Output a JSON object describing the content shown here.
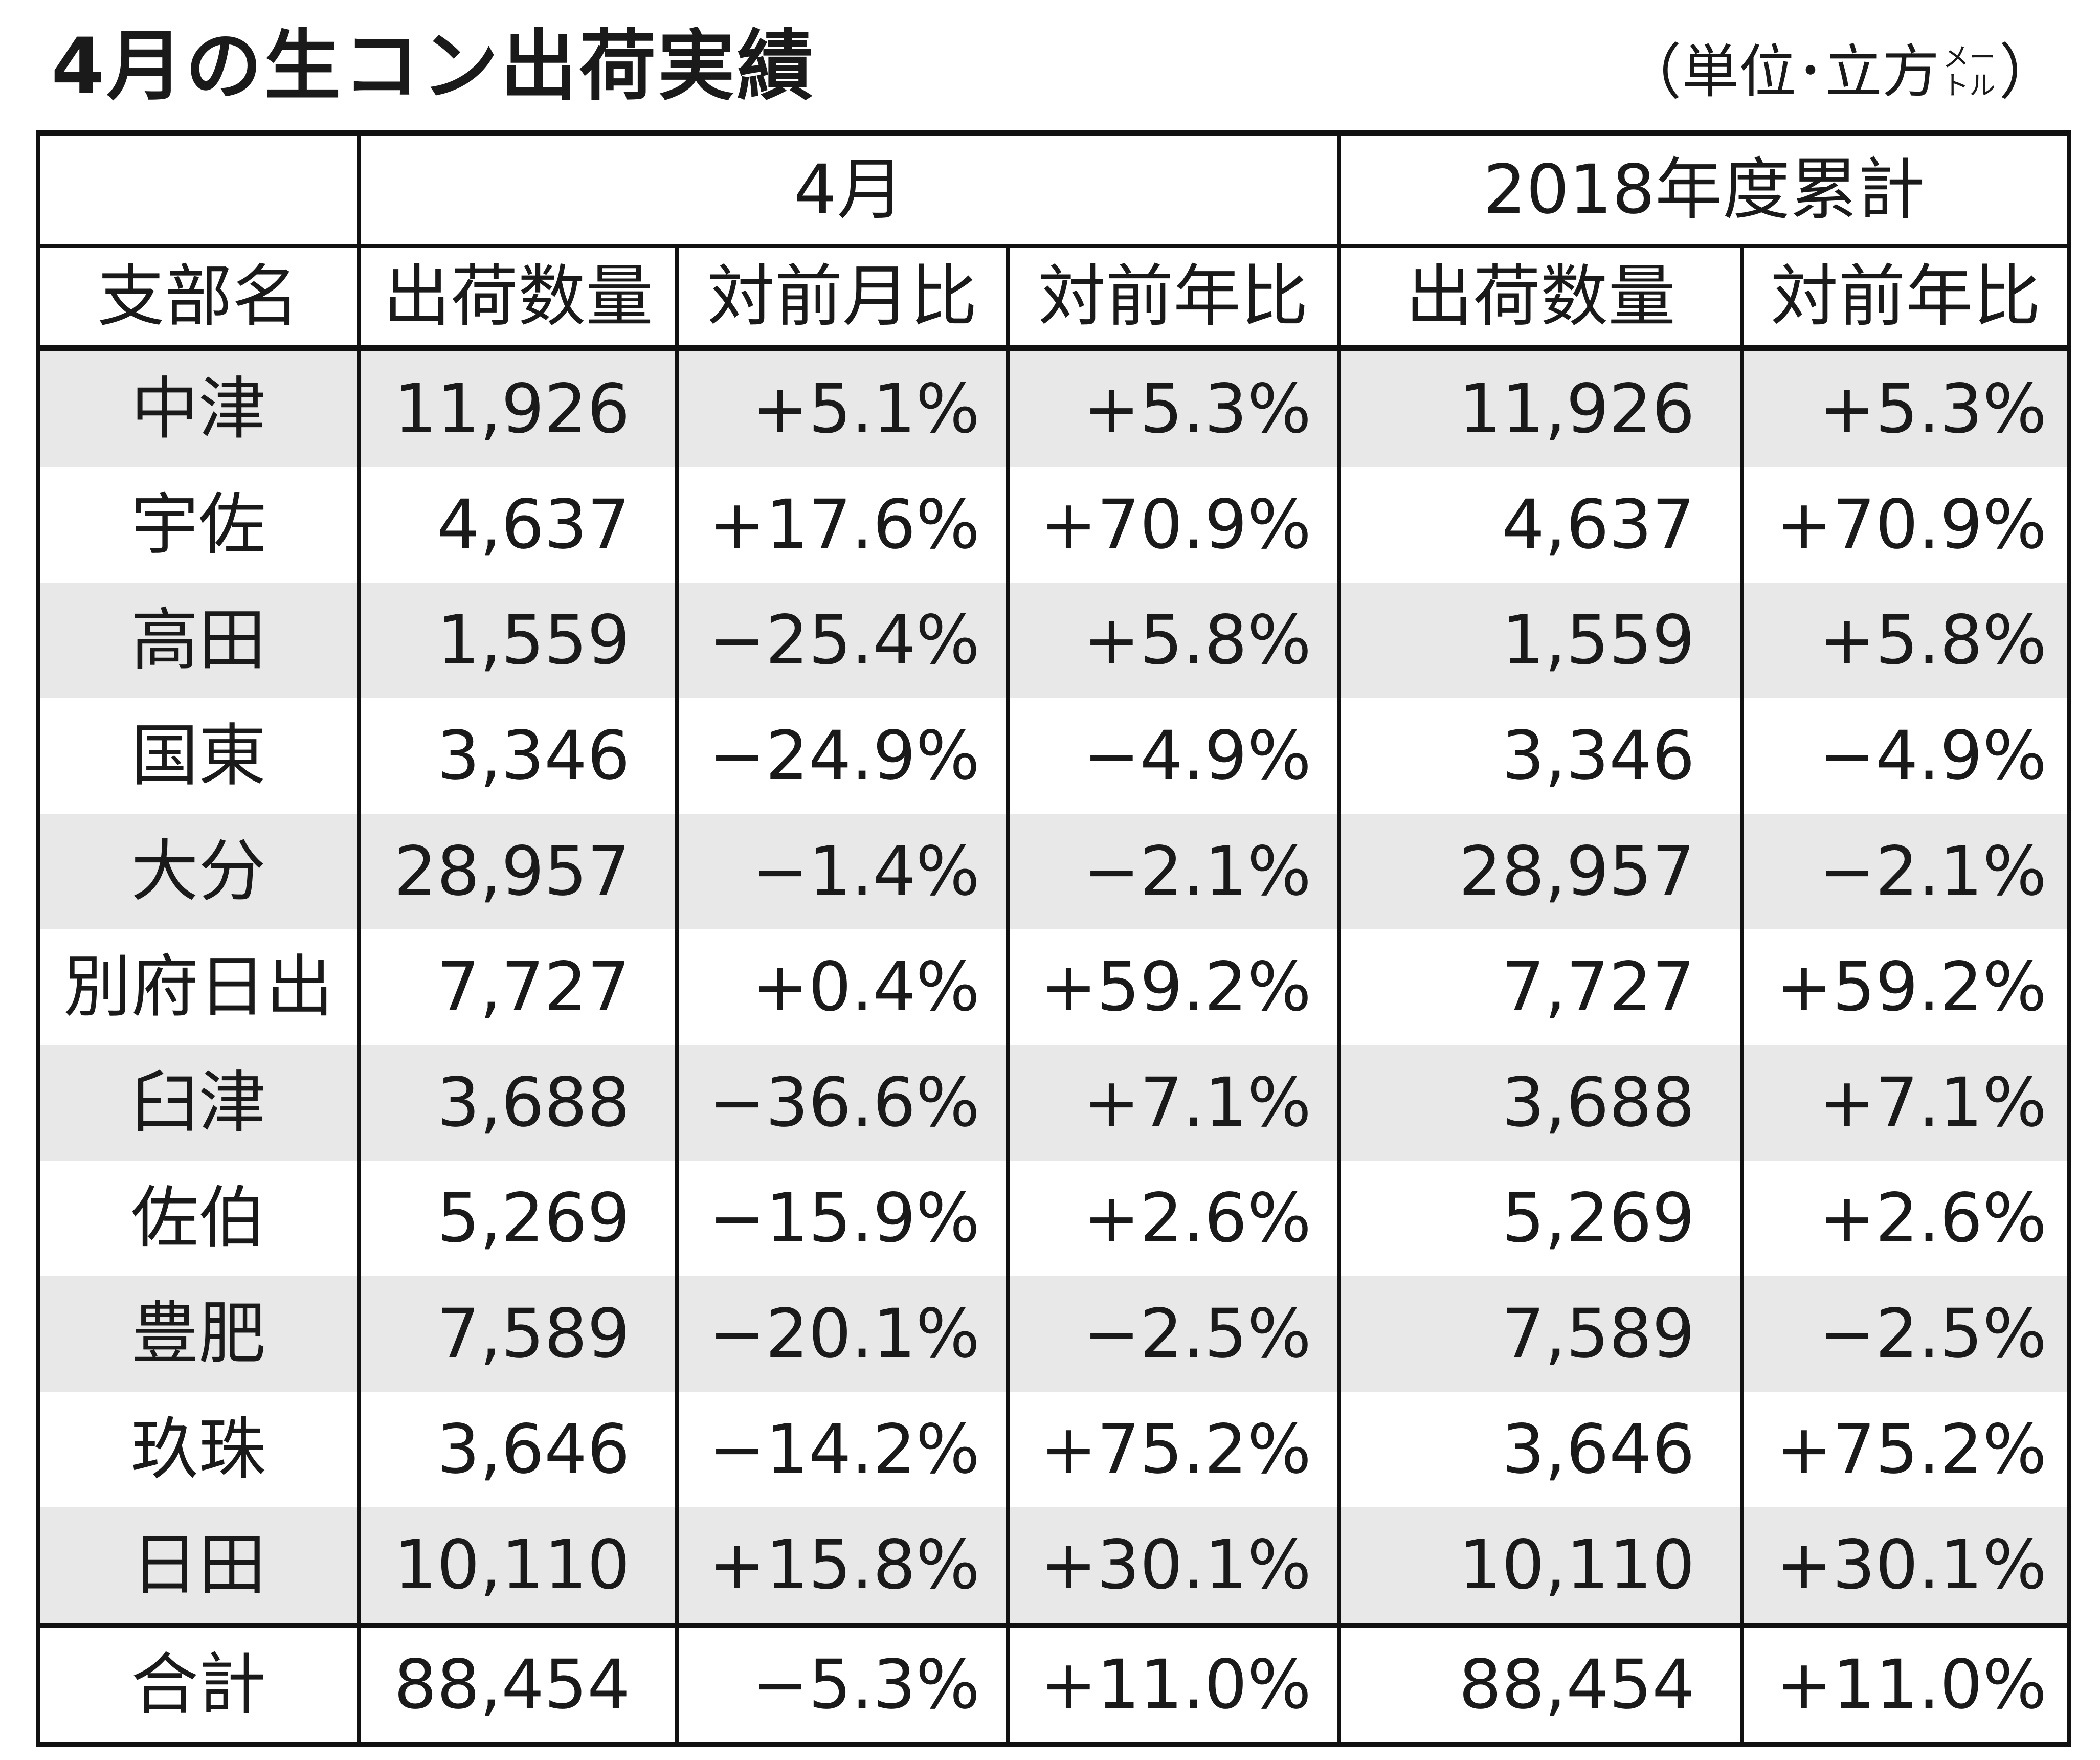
{
  "title": "4月の生コン出荷実績",
  "unit": {
    "open_paren": "（",
    "text": "単位･立方",
    "meter_top": "メー",
    "meter_bottom": "トル",
    "close_paren": "）"
  },
  "header": {
    "group_month": "4月",
    "group_cumulative": "2018年度累計",
    "col_branch": "支部名",
    "col_month_qty": "出荷数量",
    "col_month_mom": "対前月比",
    "col_month_yoy": "対前年比",
    "col_cum_qty": "出荷数量",
    "col_cum_yoy": "対前年比"
  },
  "rows": [
    {
      "name": "中津",
      "qty": "11,926",
      "mom": "+5.1%",
      "yoy": "+5.3%",
      "cum_qty": "11,926",
      "cum_yoy": "+5.3%"
    },
    {
      "name": "宇佐",
      "qty": "4,637",
      "mom": "+17.6%",
      "yoy": "+70.9%",
      "cum_qty": "4,637",
      "cum_yoy": "+70.9%"
    },
    {
      "name": "高田",
      "qty": "1,559",
      "mom": "−25.4%",
      "yoy": "+5.8%",
      "cum_qty": "1,559",
      "cum_yoy": "+5.8%"
    },
    {
      "name": "国東",
      "qty": "3,346",
      "mom": "−24.9%",
      "yoy": "−4.9%",
      "cum_qty": "3,346",
      "cum_yoy": "−4.9%"
    },
    {
      "name": "大分",
      "qty": "28,957",
      "mom": "−1.4%",
      "yoy": "−2.1%",
      "cum_qty": "28,957",
      "cum_yoy": "−2.1%"
    },
    {
      "name": "別府日出",
      "qty": "7,727",
      "mom": "+0.4%",
      "yoy": "+59.2%",
      "cum_qty": "7,727",
      "cum_yoy": "+59.2%"
    },
    {
      "name": "臼津",
      "qty": "3,688",
      "mom": "−36.6%",
      "yoy": "+7.1%",
      "cum_qty": "3,688",
      "cum_yoy": "+7.1%"
    },
    {
      "name": "佐伯",
      "qty": "5,269",
      "mom": "−15.9%",
      "yoy": "+2.6%",
      "cum_qty": "5,269",
      "cum_yoy": "+2.6%"
    },
    {
      "name": "豊肥",
      "qty": "7,589",
      "mom": "−20.1%",
      "yoy": "−2.5%",
      "cum_qty": "7,589",
      "cum_yoy": "−2.5%"
    },
    {
      "name": "玖珠",
      "qty": "3,646",
      "mom": "−14.2%",
      "yoy": "+75.2%",
      "cum_qty": "3,646",
      "cum_yoy": "+75.2%"
    },
    {
      "name": "日田",
      "qty": "10,110",
      "mom": "+15.8%",
      "yoy": "+30.1%",
      "cum_qty": "10,110",
      "cum_yoy": "+30.1%"
    }
  ],
  "total": {
    "name": "合計",
    "qty": "88,454",
    "mom": "−5.3%",
    "yoy": "+11.0%",
    "cum_qty": "88,454",
    "cum_yoy": "+11.0%"
  },
  "colors": {
    "shaded_row": "#e8e8e8",
    "border": "#111111",
    "text": "#1a1a1a"
  }
}
